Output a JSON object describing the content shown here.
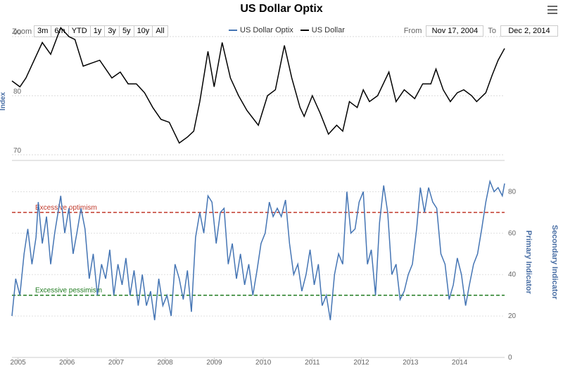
{
  "title": "US Dollar Optix",
  "zoom": {
    "label": "Zoom",
    "buttons": [
      "3m",
      "6m",
      "YTD",
      "1y",
      "3y",
      "5y",
      "10y",
      "All"
    ]
  },
  "range": {
    "from_label": "From",
    "from_value": "Nov 17, 2004",
    "to_label": "To",
    "to_value": "Dec 2, 2014"
  },
  "legend": [
    {
      "name": "US Dollar Optix",
      "color": "#4575b4"
    },
    {
      "name": "US Dollar",
      "color": "#000000"
    }
  ],
  "chart_data": {
    "type": "line",
    "x_range": [
      "2004-11-17",
      "2014-12-02"
    ],
    "x_ticks": [
      "2005",
      "2006",
      "2007",
      "2008",
      "2009",
      "2010",
      "2011",
      "2012",
      "2013",
      "2014"
    ],
    "top_panel": {
      "ylabel": "Index",
      "ylim": [
        70,
        90
      ],
      "yticks": [
        "70",
        "80",
        "90"
      ],
      "series": {
        "name": "US Dollar",
        "color": "#000000",
        "points": [
          [
            "2004-11-17",
            82.5
          ],
          [
            "2005-01-15",
            81.5
          ],
          [
            "2005-03-01",
            83.0
          ],
          [
            "2005-05-01",
            86.0
          ],
          [
            "2005-07-01",
            89.0
          ],
          [
            "2005-09-01",
            87.0
          ],
          [
            "2005-11-15",
            91.5
          ],
          [
            "2006-01-15",
            90.0
          ],
          [
            "2006-03-01",
            89.5
          ],
          [
            "2006-05-01",
            85.0
          ],
          [
            "2006-07-01",
            85.5
          ],
          [
            "2006-09-01",
            86.0
          ],
          [
            "2006-12-01",
            83.0
          ],
          [
            "2007-02-01",
            84.0
          ],
          [
            "2007-04-01",
            82.0
          ],
          [
            "2007-06-01",
            82.0
          ],
          [
            "2007-08-01",
            80.5
          ],
          [
            "2007-10-01",
            78.0
          ],
          [
            "2007-12-01",
            76.0
          ],
          [
            "2008-02-01",
            75.5
          ],
          [
            "2008-04-15",
            72.0
          ],
          [
            "2008-06-15",
            73.0
          ],
          [
            "2008-08-01",
            74.0
          ],
          [
            "2008-09-15",
            79.0
          ],
          [
            "2008-11-15",
            87.5
          ],
          [
            "2008-12-31",
            81.5
          ],
          [
            "2009-03-01",
            89.0
          ],
          [
            "2009-05-01",
            83.0
          ],
          [
            "2009-07-01",
            80.0
          ],
          [
            "2009-09-01",
            77.5
          ],
          [
            "2009-11-25",
            75.0
          ],
          [
            "2010-02-01",
            80.0
          ],
          [
            "2010-04-01",
            81.0
          ],
          [
            "2010-06-07",
            88.5
          ],
          [
            "2010-08-01",
            83.0
          ],
          [
            "2010-10-01",
            78.0
          ],
          [
            "2010-11-01",
            76.5
          ],
          [
            "2011-01-01",
            80.0
          ],
          [
            "2011-03-01",
            77.0
          ],
          [
            "2011-05-01",
            73.5
          ],
          [
            "2011-07-01",
            75.0
          ],
          [
            "2011-08-15",
            74.0
          ],
          [
            "2011-10-04",
            79.0
          ],
          [
            "2011-12-01",
            78.0
          ],
          [
            "2012-01-15",
            81.0
          ],
          [
            "2012-03-01",
            79.0
          ],
          [
            "2012-05-01",
            80.0
          ],
          [
            "2012-07-24",
            84.0
          ],
          [
            "2012-09-15",
            79.0
          ],
          [
            "2012-11-15",
            81.0
          ],
          [
            "2013-02-01",
            79.5
          ],
          [
            "2013-04-01",
            82.0
          ],
          [
            "2013-06-01",
            82.0
          ],
          [
            "2013-07-09",
            84.5
          ],
          [
            "2013-09-01",
            81.0
          ],
          [
            "2013-10-24",
            79.0
          ],
          [
            "2013-12-15",
            80.5
          ],
          [
            "2014-02-01",
            81.0
          ],
          [
            "2014-04-01",
            80.0
          ],
          [
            "2014-05-08",
            79.0
          ],
          [
            "2014-07-15",
            80.5
          ],
          [
            "2014-09-01",
            83.5
          ],
          [
            "2014-10-15",
            86.0
          ],
          [
            "2014-12-02",
            88.0
          ]
        ]
      }
    },
    "bottom_panel": {
      "ylabel": "Primary Indicator",
      "ylabel_right": "Secondary Indicator",
      "ylim": [
        0,
        90
      ],
      "yticks": [
        "0",
        "20",
        "40",
        "60",
        "80"
      ],
      "thresholds": [
        {
          "label": "Excessive optimism",
          "value": 70,
          "color": "#c0392b"
        },
        {
          "label": "Excessive pessimism",
          "value": 30,
          "color": "#1e7a1e"
        }
      ],
      "series": {
        "name": "US Dollar Optix",
        "color": "#4575b4",
        "points": [
          [
            "2004-11-17",
            20
          ],
          [
            "2004-12-15",
            38
          ],
          [
            "2005-01-15",
            30
          ],
          [
            "2005-02-15",
            50
          ],
          [
            "2005-03-15",
            62
          ],
          [
            "2005-04-15",
            45
          ],
          [
            "2005-05-15",
            58
          ],
          [
            "2005-06-01",
            75
          ],
          [
            "2005-07-01",
            55
          ],
          [
            "2005-08-01",
            68
          ],
          [
            "2005-09-01",
            45
          ],
          [
            "2005-10-01",
            60
          ],
          [
            "2005-11-15",
            78
          ],
          [
            "2005-12-15",
            60
          ],
          [
            "2006-01-15",
            72
          ],
          [
            "2006-02-15",
            50
          ],
          [
            "2006-03-15",
            60
          ],
          [
            "2006-04-15",
            72
          ],
          [
            "2006-05-15",
            62
          ],
          [
            "2006-06-15",
            38
          ],
          [
            "2006-07-15",
            50
          ],
          [
            "2006-08-15",
            30
          ],
          [
            "2006-09-15",
            45
          ],
          [
            "2006-10-15",
            38
          ],
          [
            "2006-11-15",
            52
          ],
          [
            "2006-12-15",
            30
          ],
          [
            "2007-01-15",
            45
          ],
          [
            "2007-02-15",
            35
          ],
          [
            "2007-03-15",
            48
          ],
          [
            "2007-04-15",
            30
          ],
          [
            "2007-05-15",
            42
          ],
          [
            "2007-06-15",
            25
          ],
          [
            "2007-07-15",
            40
          ],
          [
            "2007-08-15",
            25
          ],
          [
            "2007-09-15",
            32
          ],
          [
            "2007-10-15",
            18
          ],
          [
            "2007-11-15",
            38
          ],
          [
            "2007-12-15",
            25
          ],
          [
            "2008-01-15",
            30
          ],
          [
            "2008-02-15",
            20
          ],
          [
            "2008-03-15",
            45
          ],
          [
            "2008-04-15",
            38
          ],
          [
            "2008-05-15",
            28
          ],
          [
            "2008-06-15",
            42
          ],
          [
            "2008-07-15",
            22
          ],
          [
            "2008-08-15",
            58
          ],
          [
            "2008-09-15",
            70
          ],
          [
            "2008-10-15",
            60
          ],
          [
            "2008-11-15",
            78
          ],
          [
            "2008-12-15",
            75
          ],
          [
            "2009-01-15",
            55
          ],
          [
            "2009-02-15",
            70
          ],
          [
            "2009-03-15",
            72
          ],
          [
            "2009-04-15",
            45
          ],
          [
            "2009-05-15",
            55
          ],
          [
            "2009-06-15",
            38
          ],
          [
            "2009-07-15",
            50
          ],
          [
            "2009-08-15",
            35
          ],
          [
            "2009-09-15",
            45
          ],
          [
            "2009-10-15",
            30
          ],
          [
            "2009-11-15",
            42
          ],
          [
            "2009-12-15",
            55
          ],
          [
            "2010-01-15",
            60
          ],
          [
            "2010-02-15",
            75
          ],
          [
            "2010-03-15",
            68
          ],
          [
            "2010-04-15",
            72
          ],
          [
            "2010-05-15",
            68
          ],
          [
            "2010-06-15",
            76
          ],
          [
            "2010-07-15",
            55
          ],
          [
            "2010-08-15",
            40
          ],
          [
            "2010-09-15",
            45
          ],
          [
            "2010-10-15",
            32
          ],
          [
            "2010-11-15",
            40
          ],
          [
            "2010-12-15",
            52
          ],
          [
            "2011-01-15",
            35
          ],
          [
            "2011-02-15",
            45
          ],
          [
            "2011-03-15",
            25
          ],
          [
            "2011-04-15",
            30
          ],
          [
            "2011-05-15",
            18
          ],
          [
            "2011-06-15",
            40
          ],
          [
            "2011-07-15",
            50
          ],
          [
            "2011-08-15",
            45
          ],
          [
            "2011-09-15",
            80
          ],
          [
            "2011-10-15",
            60
          ],
          [
            "2011-11-15",
            62
          ],
          [
            "2011-12-15",
            75
          ],
          [
            "2012-01-15",
            80
          ],
          [
            "2012-02-15",
            45
          ],
          [
            "2012-03-15",
            52
          ],
          [
            "2012-04-15",
            30
          ],
          [
            "2012-05-15",
            65
          ],
          [
            "2012-06-15",
            83
          ],
          [
            "2012-07-15",
            70
          ],
          [
            "2012-08-15",
            40
          ],
          [
            "2012-09-15",
            45
          ],
          [
            "2012-10-15",
            28
          ],
          [
            "2012-11-15",
            32
          ],
          [
            "2012-12-15",
            40
          ],
          [
            "2013-01-15",
            45
          ],
          [
            "2013-02-15",
            62
          ],
          [
            "2013-03-15",
            82
          ],
          [
            "2013-04-15",
            70
          ],
          [
            "2013-05-15",
            82
          ],
          [
            "2013-06-15",
            75
          ],
          [
            "2013-07-15",
            72
          ],
          [
            "2013-08-15",
            50
          ],
          [
            "2013-09-15",
            45
          ],
          [
            "2013-10-15",
            28
          ],
          [
            "2013-11-15",
            35
          ],
          [
            "2013-12-15",
            48
          ],
          [
            "2014-01-15",
            40
          ],
          [
            "2014-02-15",
            25
          ],
          [
            "2014-03-15",
            35
          ],
          [
            "2014-04-15",
            45
          ],
          [
            "2014-05-15",
            50
          ],
          [
            "2014-06-15",
            62
          ],
          [
            "2014-07-15",
            75
          ],
          [
            "2014-08-15",
            85
          ],
          [
            "2014-09-15",
            80
          ],
          [
            "2014-10-15",
            82
          ],
          [
            "2014-11-15",
            78
          ],
          [
            "2014-12-02",
            84
          ]
        ]
      }
    }
  }
}
